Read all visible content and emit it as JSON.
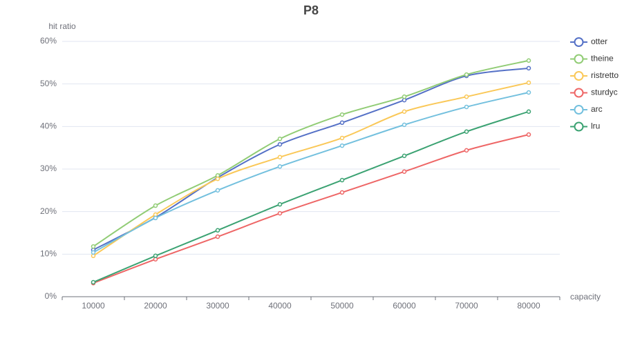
{
  "chart_data": {
    "type": "line",
    "title": "P8",
    "y_label": "hit ratio",
    "x_label": "capacity",
    "categories": [
      "10000",
      "20000",
      "30000",
      "40000",
      "50000",
      "60000",
      "70000",
      "80000"
    ],
    "ylim": [
      0,
      60
    ],
    "yticks": [
      {
        "value": 0,
        "label": "0%"
      },
      {
        "value": 10,
        "label": "10%"
      },
      {
        "value": 20,
        "label": "20%"
      },
      {
        "value": 30,
        "label": "30%"
      },
      {
        "value": 40,
        "label": "40%"
      },
      {
        "value": 50,
        "label": "50%"
      },
      {
        "value": 60,
        "label": "60%"
      }
    ],
    "grid": true,
    "smooth": true,
    "legend_position": "right",
    "series": [
      {
        "name": "otter",
        "color": "#5470c6",
        "values": [
          11.0,
          18.6,
          28.0,
          35.8,
          40.9,
          46.2,
          51.9,
          53.7
        ]
      },
      {
        "name": "theine",
        "color": "#91cc75",
        "values": [
          11.8,
          21.4,
          28.5,
          37.1,
          42.8,
          47.0,
          52.2,
          55.5
        ]
      },
      {
        "name": "ristretto",
        "color": "#fac858",
        "values": [
          9.6,
          19.3,
          27.7,
          32.8,
          37.3,
          43.5,
          47.0,
          50.3
        ]
      },
      {
        "name": "sturdyc",
        "color": "#ee6666",
        "values": [
          3.2,
          8.8,
          14.1,
          19.6,
          24.5,
          29.4,
          34.4,
          38.1
        ]
      },
      {
        "name": "arc",
        "color": "#73c0de",
        "values": [
          10.4,
          18.5,
          25.0,
          30.6,
          35.5,
          40.4,
          44.6,
          48.0
        ]
      },
      {
        "name": "lru",
        "color": "#3ba272",
        "values": [
          3.4,
          9.6,
          15.6,
          21.7,
          27.4,
          33.1,
          38.8,
          43.5
        ]
      }
    ]
  }
}
